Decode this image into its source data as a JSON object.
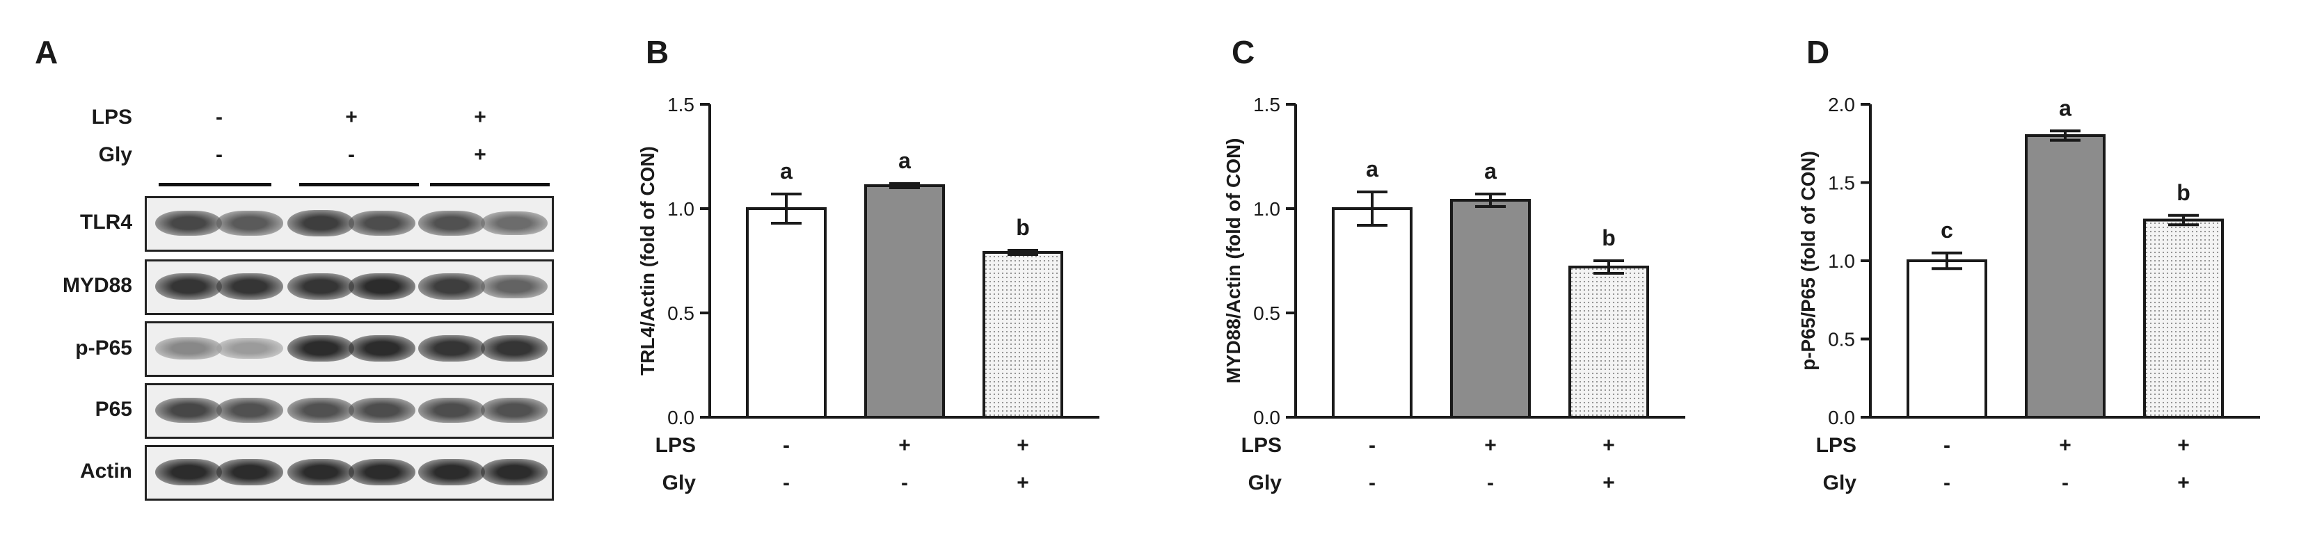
{
  "panels": {
    "a": "A",
    "b": "B",
    "c": "C",
    "d": "D"
  },
  "blot": {
    "treatments": [
      {
        "label": "LPS",
        "signs": [
          "-",
          "+",
          "+"
        ]
      },
      {
        "label": "Gly",
        "signs": [
          "-",
          "-",
          "+"
        ]
      }
    ],
    "rows": [
      {
        "label": "TLR4",
        "intensity": [
          0.75,
          0.65,
          0.8,
          0.72,
          0.7,
          0.55
        ]
      },
      {
        "label": "MYD88",
        "intensity": [
          0.85,
          0.85,
          0.85,
          0.9,
          0.8,
          0.6
        ]
      },
      {
        "label": "p-P65",
        "intensity": [
          0.4,
          0.3,
          0.9,
          0.9,
          0.85,
          0.85
        ]
      },
      {
        "label": "P65",
        "intensity": [
          0.75,
          0.7,
          0.7,
          0.72,
          0.72,
          0.7
        ]
      },
      {
        "label": "Actin",
        "intensity": [
          0.9,
          0.9,
          0.9,
          0.9,
          0.9,
          0.9
        ]
      }
    ]
  },
  "chart_data": [
    {
      "type": "bar",
      "panel": "B",
      "ylabel": "TRL4/Actin (fold of CON)",
      "ylim": [
        0,
        1.5
      ],
      "yticks": [
        "0.0",
        "0.5",
        "1.0",
        "1.5"
      ],
      "values": [
        1.0,
        1.11,
        0.79
      ],
      "errors": [
        0.07,
        0.01,
        0.01
      ],
      "letters": [
        "a",
        "a",
        "b"
      ],
      "row_labels": [
        "LPS",
        "Gly"
      ],
      "groups": [
        [
          "-",
          "-"
        ],
        [
          "+",
          "-"
        ],
        [
          "+",
          "+"
        ]
      ]
    },
    {
      "type": "bar",
      "panel": "C",
      "ylabel": "MYD88/Actin (fold of CON)",
      "ylim": [
        0,
        1.5
      ],
      "yticks": [
        "0.0",
        "0.5",
        "1.0",
        "1.5"
      ],
      "values": [
        1.0,
        1.04,
        0.72
      ],
      "errors": [
        0.08,
        0.03,
        0.03
      ],
      "letters": [
        "a",
        "a",
        "b"
      ],
      "row_labels": [
        "LPS",
        "Gly"
      ],
      "groups": [
        [
          "-",
          "-"
        ],
        [
          "+",
          "-"
        ],
        [
          "+",
          "+"
        ]
      ]
    },
    {
      "type": "bar",
      "panel": "D",
      "ylabel": "p-P65/P65 (fold of CON)",
      "ylim": [
        0,
        2.0
      ],
      "yticks": [
        "0.0",
        "0.5",
        "1.0",
        "1.5",
        "2.0"
      ],
      "values": [
        1.0,
        1.8,
        1.26
      ],
      "errors": [
        0.05,
        0.03,
        0.03
      ],
      "letters": [
        "c",
        "a",
        "b"
      ],
      "row_labels": [
        "LPS",
        "Gly"
      ],
      "groups": [
        [
          "-",
          "-"
        ],
        [
          "+",
          "-"
        ],
        [
          "+",
          "+"
        ]
      ]
    }
  ],
  "colors": {
    "bar_fills": [
      "#ffffff",
      "#8c8c8c",
      "dots"
    ],
    "axis": "#1a1a1a",
    "band": "#1c1c1c"
  }
}
